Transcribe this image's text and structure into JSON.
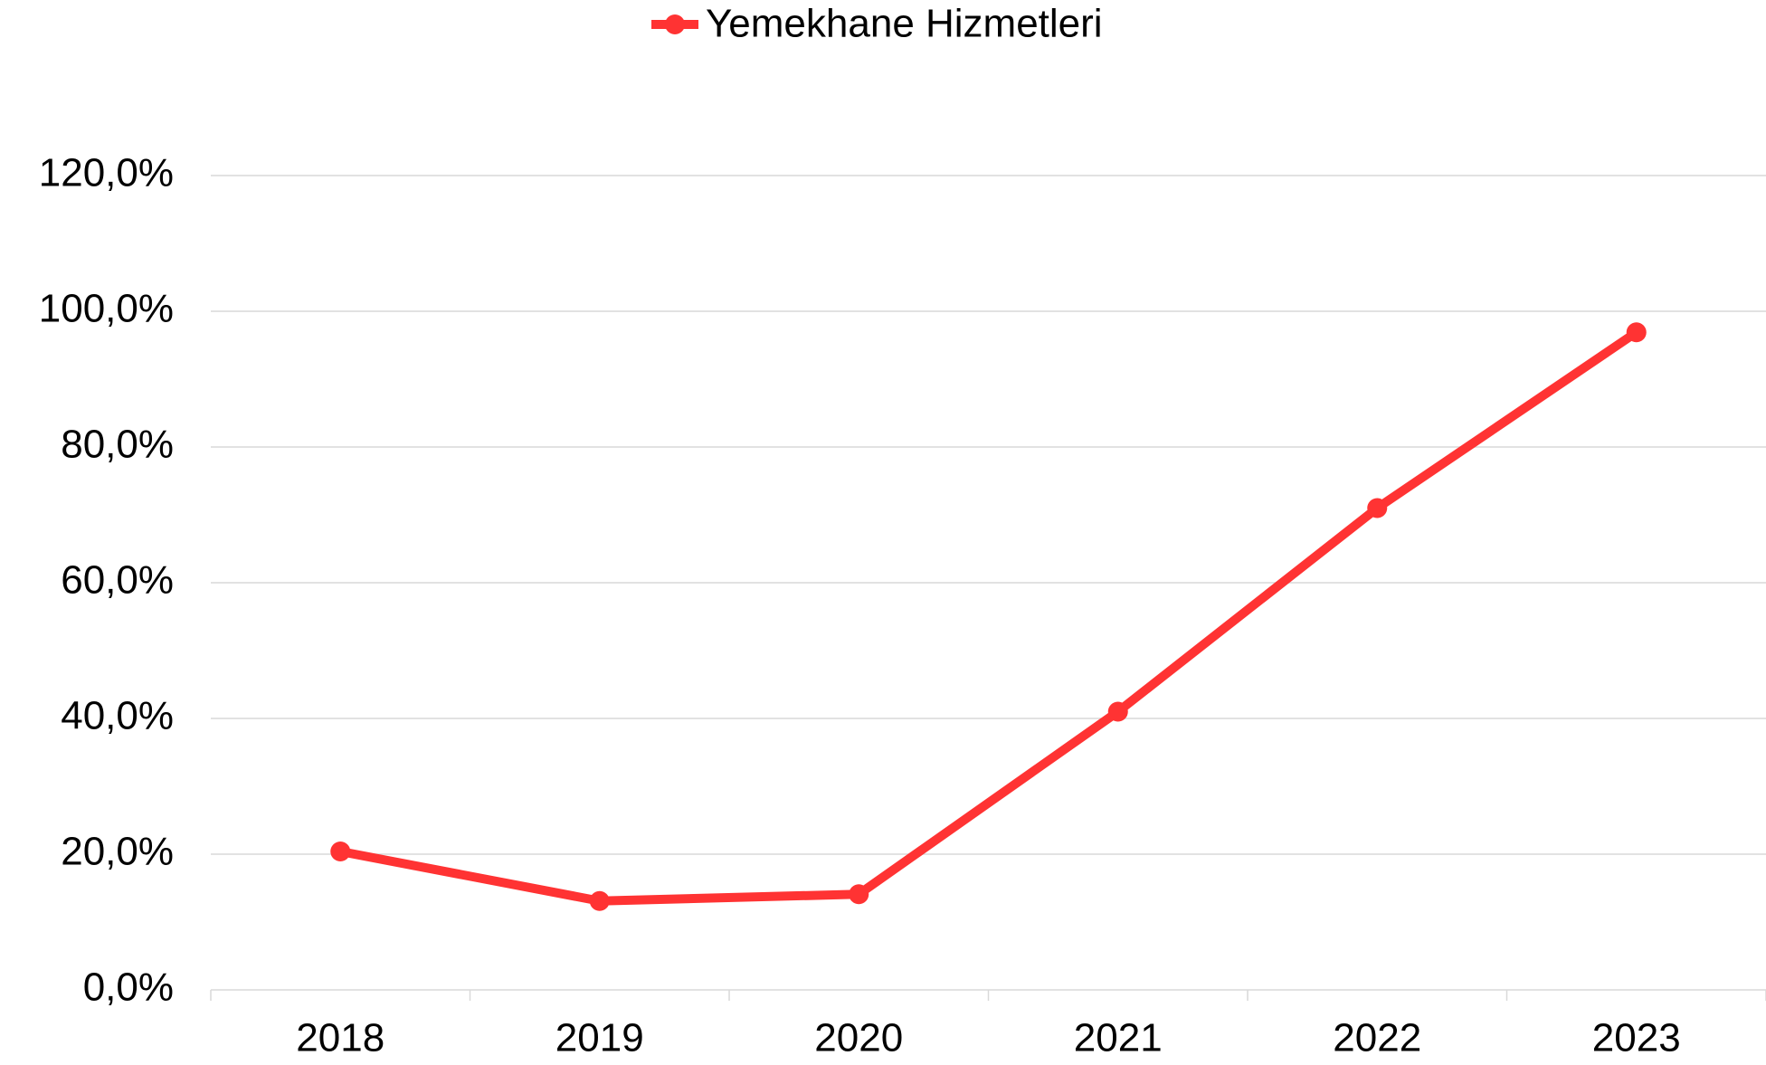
{
  "chart_data": {
    "type": "line",
    "categories": [
      "2018",
      "2019",
      "2020",
      "2021",
      "2022",
      "2023"
    ],
    "series": [
      {
        "name": "Yemekhane Hizmetleri",
        "color": "#ff3333",
        "values": [
          20.4,
          13.1,
          14.1,
          41.0,
          71.0,
          96.9
        ]
      }
    ],
    "ylim": [
      0,
      120
    ],
    "yticks": [
      {
        "value": 0,
        "label": "0,0%"
      },
      {
        "value": 20,
        "label": "20,0%"
      },
      {
        "value": 40,
        "label": "40,0%"
      },
      {
        "value": 60,
        "label": "60,0%"
      },
      {
        "value": 80,
        "label": "80,0%"
      },
      {
        "value": 100,
        "label": "100,0%"
      },
      {
        "value": 120,
        "label": "120,0%"
      }
    ],
    "grid": true,
    "legend": "top"
  }
}
